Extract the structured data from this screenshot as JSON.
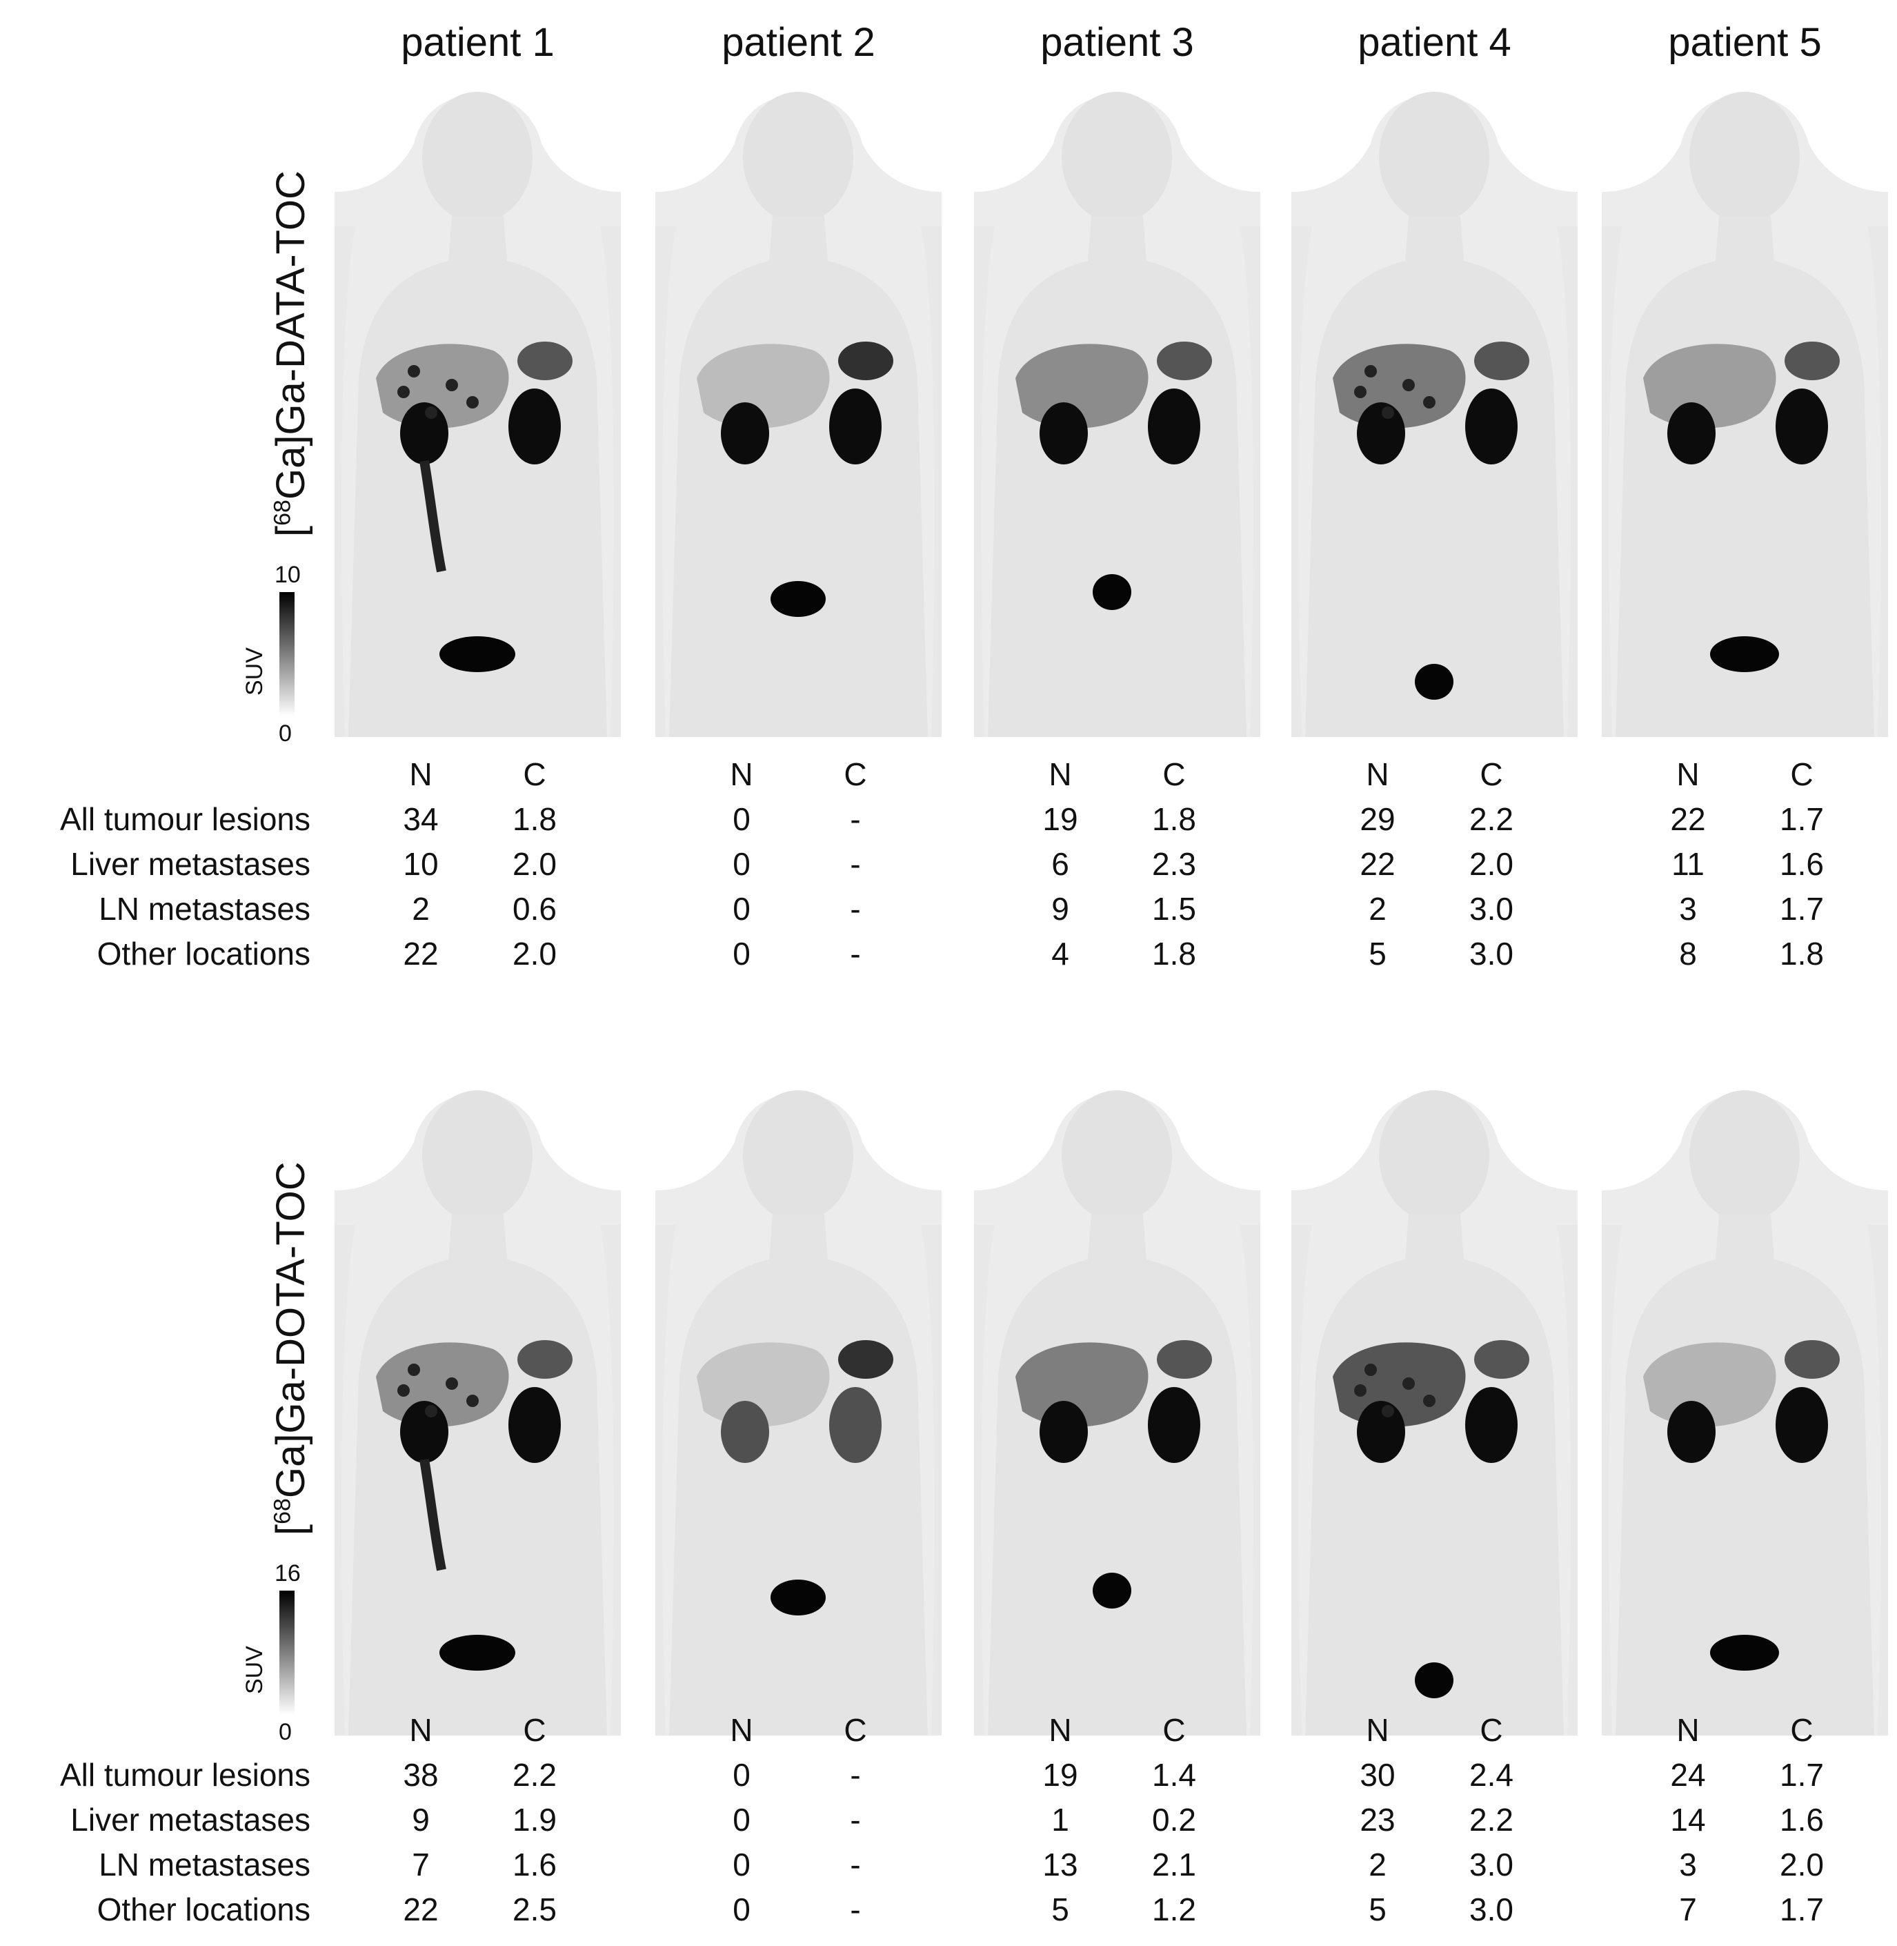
{
  "patients": [
    "patient 1",
    "patient 2",
    "patient 3",
    "patient 4",
    "patient 5"
  ],
  "column_headers": [
    "N",
    "C"
  ],
  "row_labels": [
    "All tumour lesions",
    "Liver metastases",
    "LN metastases",
    "Other locations"
  ],
  "panels": [
    {
      "tracer_prefix": "[",
      "tracer_sup": "68",
      "tracer_rest": "Ga]Ga-DATA-TOC",
      "colorbar": {
        "label": "SUV",
        "max": "10",
        "min": "0"
      },
      "table": [
        [
          [
            "34",
            "1.8"
          ],
          [
            "10",
            "2.0"
          ],
          [
            "2",
            "0.6"
          ],
          [
            "22",
            "2.0"
          ]
        ],
        [
          [
            "0",
            "-"
          ],
          [
            "0",
            "-"
          ],
          [
            "0",
            "-"
          ],
          [
            "0",
            "-"
          ]
        ],
        [
          [
            "19",
            "1.8"
          ],
          [
            "6",
            "2.3"
          ],
          [
            "9",
            "1.5"
          ],
          [
            "4",
            "1.8"
          ]
        ],
        [
          [
            "29",
            "2.2"
          ],
          [
            "22",
            "2.0"
          ],
          [
            "2",
            "3.0"
          ],
          [
            "5",
            "3.0"
          ]
        ],
        [
          [
            "22",
            "1.7"
          ],
          [
            "11",
            "1.6"
          ],
          [
            "3",
            "1.7"
          ],
          [
            "8",
            "1.8"
          ]
        ]
      ]
    },
    {
      "tracer_prefix": "[",
      "tracer_sup": "68",
      "tracer_rest": "Ga]Ga-DOTA-TOC",
      "colorbar": {
        "label": "SUV",
        "max": "16",
        "min": "0"
      },
      "table": [
        [
          [
            "38",
            "2.2"
          ],
          [
            "9",
            "1.9"
          ],
          [
            "7",
            "1.6"
          ],
          [
            "22",
            "2.5"
          ]
        ],
        [
          [
            "0",
            "-"
          ],
          [
            "0",
            "-"
          ],
          [
            "0",
            "-"
          ],
          [
            "0",
            "-"
          ]
        ],
        [
          [
            "19",
            "1.4"
          ],
          [
            "1",
            "0.2"
          ],
          [
            "13",
            "2.1"
          ],
          [
            "5",
            "1.2"
          ]
        ],
        [
          [
            "30",
            "2.4"
          ],
          [
            "23",
            "2.2"
          ],
          [
            "2",
            "3.0"
          ],
          [
            "5",
            "3.0"
          ]
        ],
        [
          [
            "24",
            "1.7"
          ],
          [
            "14",
            "1.6"
          ],
          [
            "3",
            "2.0"
          ],
          [
            "7",
            "1.7"
          ]
        ]
      ]
    }
  ]
}
